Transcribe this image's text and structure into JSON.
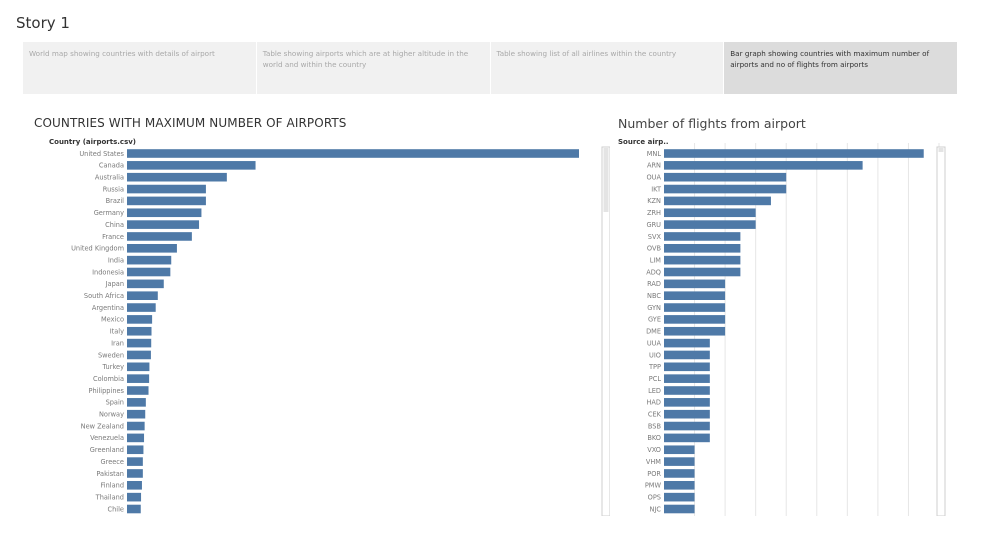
{
  "story": {
    "title": "Story 1",
    "points": [
      {
        "label": "World map showing countries with details of airport",
        "active": false
      },
      {
        "label": "Table showing airports which are at higher altitude in the world and within the country",
        "active": false
      },
      {
        "label": "Table showing list of all airlines within the country",
        "active": false
      },
      {
        "label": "Bar graph showing countries with maximum number of airports and no of flights from airports",
        "active": true
      }
    ]
  },
  "colors": {
    "bar": "#4e79a7",
    "active_tab": "#dcdcdc",
    "inactive_tab": "#f1f1f1"
  },
  "chart_data": [
    {
      "type": "bar",
      "orientation": "horizontal",
      "title": "COUNTRIES WITH MAXIMUM NUMBER OF AIRPORTS",
      "ylabel": "Country (airports.csv)",
      "xlabel": "",
      "categories": [
        "United States",
        "Canada",
        "Australia",
        "Russia",
        "Brazil",
        "Germany",
        "China",
        "France",
        "United Kingdom",
        "India",
        "Indonesia",
        "Japan",
        "South Africa",
        "Argentina",
        "Mexico",
        "Italy",
        "Iran",
        "Sweden",
        "Turkey",
        "Colombia",
        "Philippines",
        "Spain",
        "Norway",
        "New Zealand",
        "Venezuela",
        "Greenland",
        "Greece",
        "Pakistan",
        "Finland",
        "Thailand",
        "Chile"
      ],
      "values": [
        1512,
        430,
        334,
        264,
        264,
        249,
        241,
        217,
        167,
        148,
        145,
        123,
        103,
        96,
        84,
        82,
        81,
        80,
        75,
        74,
        72,
        63,
        61,
        59,
        57,
        55,
        53,
        53,
        50,
        47,
        46
      ],
      "xlim": [
        0,
        1512
      ],
      "grid": false
    },
    {
      "type": "bar",
      "orientation": "horizontal",
      "title": "Number of flights from airport",
      "ylabel": "Source airp..",
      "xlabel": "",
      "categories": [
        "MNL",
        "ARN",
        "OUA",
        "IKT",
        "KZN",
        "ZRH",
        "GRU",
        "SVX",
        "OVB",
        "LIM",
        "ADQ",
        "RAD",
        "NBC",
        "GYN",
        "GYE",
        "DME",
        "UUA",
        "UIO",
        "TPP",
        "PCL",
        "LED",
        "HAD",
        "CEK",
        "BSB",
        "BKO",
        "VXO",
        "VHM",
        "POR",
        "PMW",
        "OPS",
        "NJC"
      ],
      "values": [
        17,
        13,
        8,
        8,
        7,
        6,
        6,
        5,
        5,
        5,
        5,
        4,
        4,
        4,
        4,
        4,
        3,
        3,
        3,
        3,
        3,
        3,
        3,
        3,
        3,
        2,
        2,
        2,
        2,
        2,
        2
      ],
      "xlim": [
        0,
        18
      ],
      "grid": true
    }
  ]
}
